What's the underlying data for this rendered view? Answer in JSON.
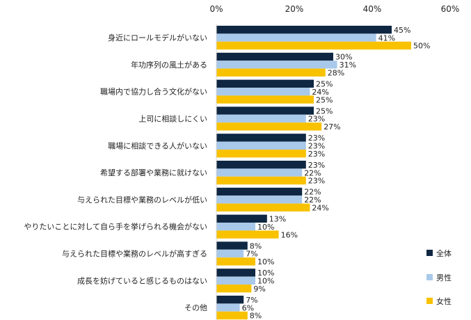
{
  "chart_data": {
    "type": "bar",
    "orientation": "horizontal",
    "categories": [
      "身近にロールモデルがいない",
      "年功序列の風土がある",
      "職場内で協力し合う文化がない",
      "上司に相談しにくい",
      "職場に相談できる人がいない",
      "希望する部署や業務に就けない",
      "与えられた目標や業務のレベルが低い",
      "やりたいことに対して自ら手を挙げられる機会がない",
      "与えられた目標や業務のレベルが高すぎる",
      "成長を妨げていると感じるものはない",
      "その他"
    ],
    "series": [
      {
        "name": "全体",
        "color": "#0f2742",
        "values": [
          45,
          30,
          25,
          25,
          23,
          23,
          22,
          13,
          8,
          10,
          7
        ]
      },
      {
        "name": "男性",
        "color": "#a9c9ea",
        "values": [
          41,
          31,
          24,
          23,
          23,
          22,
          22,
          10,
          7,
          10,
          6
        ]
      },
      {
        "name": "女性",
        "color": "#f8c200",
        "values": [
          50,
          28,
          25,
          27,
          23,
          23,
          24,
          16,
          10,
          9,
          8
        ]
      }
    ],
    "xlim": [
      0,
      60
    ],
    "xticks": [
      "0%",
      "20%",
      "40%",
      "60%"
    ],
    "value_suffix": "%",
    "grid": false,
    "legend_position": "bottom-right"
  }
}
